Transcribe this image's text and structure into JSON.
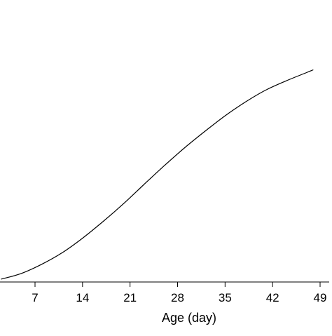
{
  "chart_data": {
    "type": "line",
    "title": "",
    "xlabel": "Age (day)",
    "ylabel": "",
    "xticks": [
      7,
      14,
      21,
      28,
      35,
      42,
      49
    ],
    "xlim": [
      2,
      50
    ],
    "ylim": [
      0,
      1
    ],
    "grid": false,
    "legend": "none",
    "line_color": "#000000",
    "series": [
      {
        "x": [
          2,
          5,
          8,
          11,
          14,
          17,
          20,
          23,
          26,
          29,
          32,
          35,
          38,
          41,
          44,
          47,
          48
        ],
        "y": [
          0.0,
          0.025,
          0.065,
          0.115,
          0.178,
          0.25,
          0.327,
          0.41,
          0.492,
          0.57,
          0.642,
          0.71,
          0.77,
          0.822,
          0.862,
          0.898,
          0.91
        ]
      }
    ]
  }
}
